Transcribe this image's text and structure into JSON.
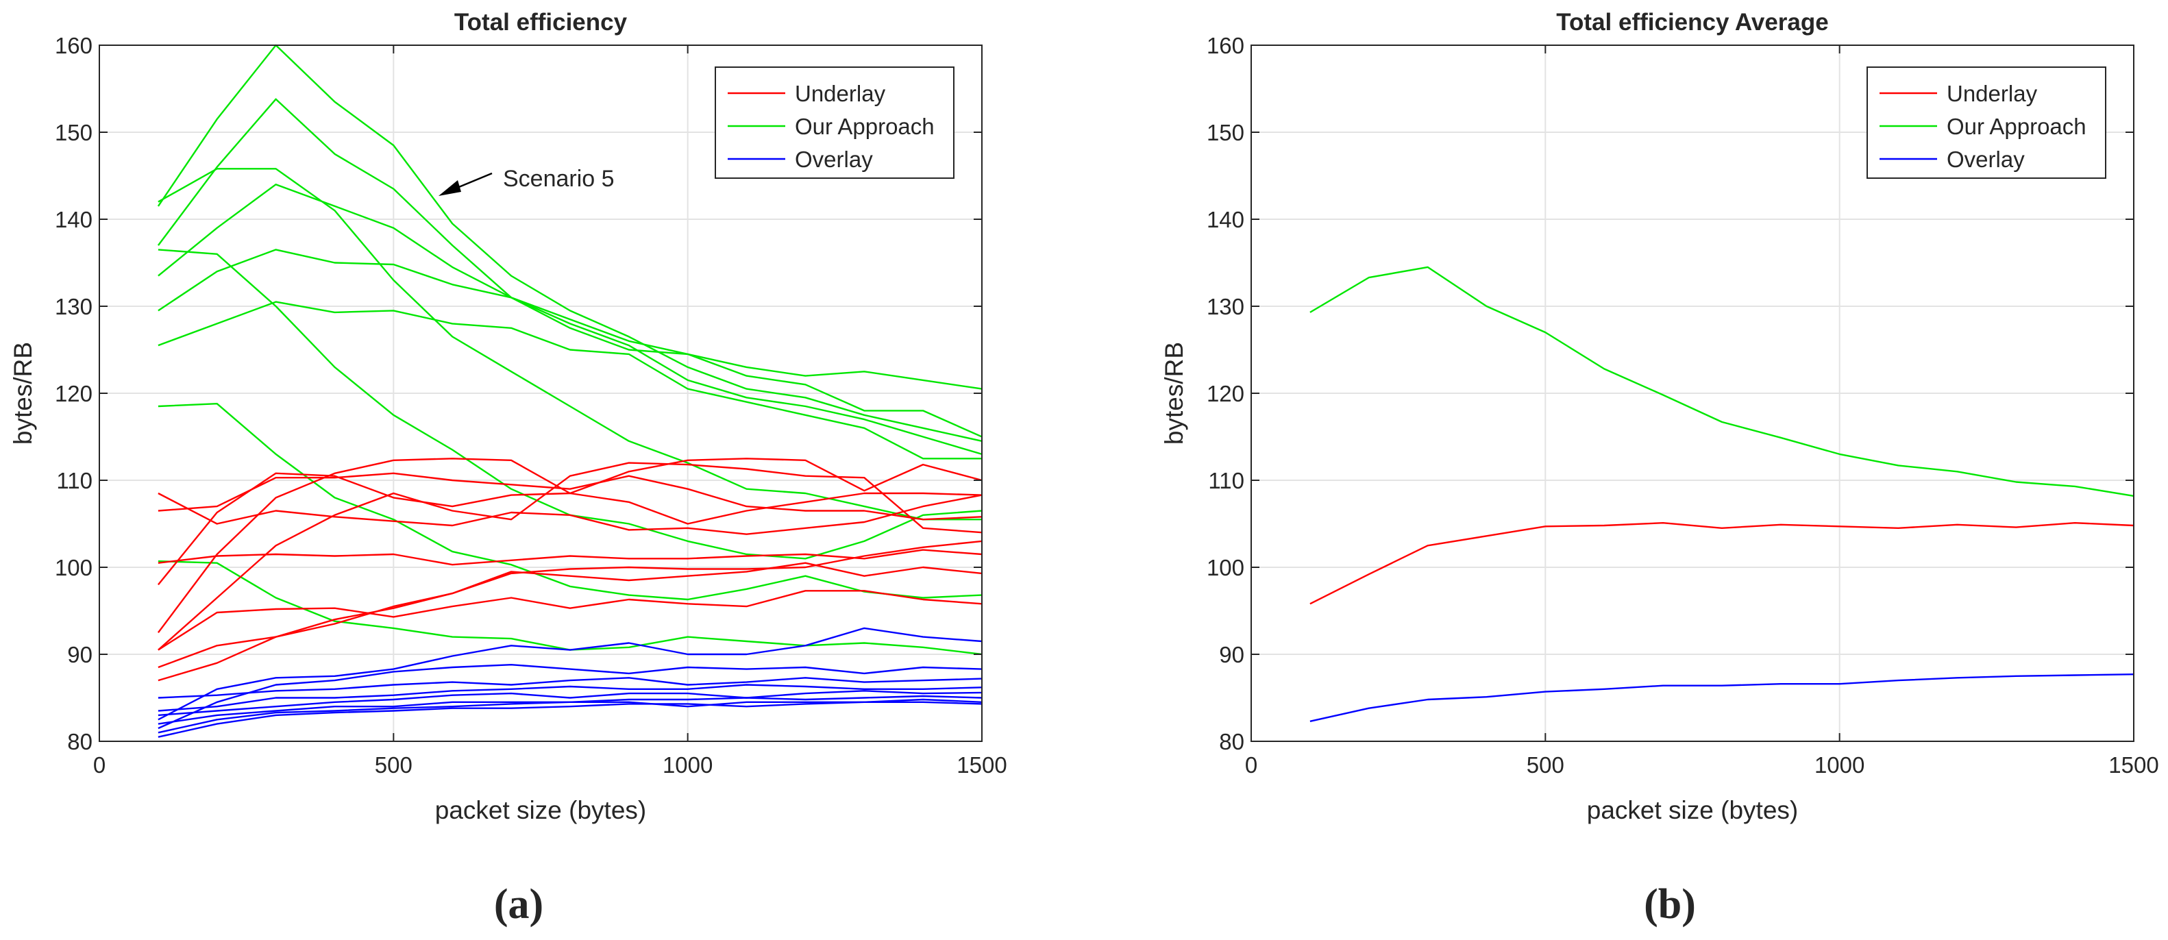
{
  "chart_data": [
    {
      "type": "line",
      "title": "Total efficiency",
      "xlabel": "packet size (bytes)",
      "ylabel": "bytes/RB",
      "xlim": [
        0,
        1500
      ],
      "ylim": [
        80,
        160
      ],
      "xticks": [
        0,
        500,
        1000,
        1500
      ],
      "yticks": [
        80,
        90,
        100,
        110,
        120,
        130,
        140,
        150,
        160
      ],
      "grid": true,
      "legend_position": "top-right",
      "panel_label": "(a)",
      "legend": [
        {
          "label": "Underlay",
          "color": "#ff0000"
        },
        {
          "label": "Our Approach",
          "color": "#00e600"
        },
        {
          "label": "Overlay",
          "color": "#0000ff"
        }
      ],
      "annotation": {
        "text": "Scenario 5",
        "points_to": [
          580,
          143
        ]
      },
      "x": [
        100,
        200,
        300,
        400,
        500,
        600,
        700,
        800,
        900,
        1000,
        1100,
        1200,
        1300,
        1400,
        1500
      ],
      "series": [
        {
          "name": "Our Approach",
          "color": "#00e600",
          "values": [
            141.5,
            151.5,
            160.0,
            153.5,
            148.5,
            139.5,
            133.5,
            129.5,
            126.5,
            123.0,
            120.5,
            119.5,
            117.5,
            116.0,
            114.5
          ]
        },
        {
          "name": "Our Approach",
          "color": "#00e600",
          "values": [
            137.0,
            146.0,
            153.8,
            147.5,
            143.5,
            137.0,
            131.0,
            127.5,
            125.0,
            124.5,
            122.0,
            121.0,
            118.0,
            118.0,
            115.0
          ]
        },
        {
          "name": "Our Approach",
          "color": "#00e600",
          "values": [
            133.5,
            139.0,
            144.0,
            141.5,
            139.0,
            134.5,
            131.0,
            128.0,
            125.5,
            121.5,
            119.5,
            118.5,
            117.0,
            115.0,
            113.0
          ]
        },
        {
          "name": "Our Approach",
          "color": "#00e600",
          "values": [
            129.5,
            134.0,
            136.5,
            135.0,
            134.8,
            132.5,
            131.0,
            128.5,
            126.0,
            124.5,
            123.0,
            122.0,
            122.5,
            121.5,
            120.5
          ]
        },
        {
          "name": "Our Approach",
          "color": "#00e600",
          "values": [
            125.5,
            128.0,
            130.5,
            129.3,
            129.5,
            128.0,
            127.5,
            125.0,
            124.5,
            120.5,
            119.0,
            117.5,
            116.0,
            112.5,
            112.5
          ]
        },
        {
          "name": "Our Approach",
          "color": "#00e600",
          "values": [
            142.0,
            145.8,
            145.8,
            141.0,
            133.0,
            126.5,
            122.5,
            118.5,
            114.5,
            112.0,
            109.0,
            108.5,
            107.0,
            105.5,
            105.5
          ]
        },
        {
          "name": "Our Approach",
          "color": "#00e600",
          "values": [
            136.5,
            136.0,
            130.0,
            123.0,
            117.5,
            113.5,
            109.0,
            106.0,
            105.0,
            103.0,
            101.5,
            101.0,
            103.0,
            106.0,
            106.5
          ]
        },
        {
          "name": "Our Approach",
          "color": "#00e600",
          "values": [
            118.5,
            118.8,
            113.0,
            108.0,
            105.5,
            101.8,
            100.3,
            97.8,
            96.8,
            96.3,
            97.5,
            99.0,
            97.2,
            96.5,
            96.8
          ]
        },
        {
          "name": "Our Approach",
          "color": "#00e600",
          "values": [
            100.7,
            100.5,
            96.5,
            93.8,
            93.0,
            92.0,
            91.8,
            90.5,
            90.8,
            92.0,
            91.5,
            91.0,
            91.3,
            90.8,
            90.0
          ]
        },
        {
          "name": "Underlay",
          "color": "#ff0000",
          "values": [
            108.5,
            105.0,
            106.5,
            105.8,
            105.3,
            104.8,
            106.3,
            106.0,
            104.3,
            104.5,
            103.8,
            104.5,
            105.2,
            107.0,
            108.3
          ]
        },
        {
          "name": "Underlay",
          "color": "#ff0000",
          "values": [
            106.5,
            107.0,
            110.3,
            110.3,
            110.8,
            110.0,
            109.5,
            109.0,
            110.5,
            109.0,
            107.0,
            106.5,
            106.5,
            105.5,
            105.8
          ]
        },
        {
          "name": "Underlay",
          "color": "#ff0000",
          "values": [
            98.0,
            106.3,
            110.8,
            110.5,
            108.0,
            107.0,
            108.3,
            108.5,
            107.5,
            105.0,
            106.5,
            107.5,
            108.5,
            108.5,
            108.3
          ]
        },
        {
          "name": "Underlay",
          "color": "#ff0000",
          "values": [
            92.5,
            101.5,
            108.0,
            110.8,
            112.3,
            112.5,
            112.3,
            108.5,
            111.0,
            112.3,
            112.5,
            112.3,
            108.8,
            111.8,
            110.0
          ]
        },
        {
          "name": "Underlay",
          "color": "#ff0000",
          "values": [
            100.5,
            101.3,
            101.5,
            101.3,
            101.5,
            100.3,
            100.8,
            101.3,
            101.0,
            101.0,
            101.3,
            101.5,
            101.0,
            102.0,
            101.5
          ]
        },
        {
          "name": "Underlay",
          "color": "#ff0000",
          "values": [
            90.5,
            96.5,
            102.5,
            106.0,
            108.5,
            106.5,
            105.5,
            110.5,
            112.0,
            111.8,
            111.3,
            110.5,
            110.3,
            104.5,
            104.0
          ]
        },
        {
          "name": "Underlay",
          "color": "#ff0000",
          "values": [
            90.5,
            94.8,
            95.2,
            95.3,
            94.3,
            95.5,
            96.5,
            95.3,
            96.3,
            95.8,
            95.5,
            97.3,
            97.3,
            96.3,
            95.8
          ]
        },
        {
          "name": "Underlay",
          "color": "#ff0000",
          "values": [
            88.5,
            91.0,
            92.0,
            94.0,
            95.3,
            97.0,
            99.5,
            99.0,
            98.5,
            99.0,
            99.5,
            100.5,
            99.0,
            100.0,
            99.3
          ]
        },
        {
          "name": "Underlay",
          "color": "#ff0000",
          "values": [
            87.0,
            89.0,
            92.0,
            93.5,
            95.5,
            97.0,
            99.3,
            99.8,
            100.0,
            99.8,
            99.8,
            100.0,
            101.3,
            102.3,
            103.0
          ]
        },
        {
          "name": "Overlay",
          "color": "#0000ff",
          "values": [
            82.5,
            86.0,
            87.3,
            87.5,
            88.3,
            89.8,
            91.0,
            90.5,
            91.3,
            90.0,
            90.0,
            91.0,
            93.0,
            92.0,
            91.5
          ]
        },
        {
          "name": "Overlay",
          "color": "#0000ff",
          "values": [
            81.5,
            84.5,
            86.5,
            87.0,
            88.0,
            88.5,
            88.8,
            88.3,
            87.8,
            88.5,
            88.3,
            88.5,
            87.8,
            88.5,
            88.3
          ]
        },
        {
          "name": "Overlay",
          "color": "#0000ff",
          "values": [
            85.0,
            85.3,
            85.8,
            86.0,
            86.5,
            86.8,
            86.5,
            87.0,
            87.3,
            86.5,
            86.8,
            87.3,
            86.8,
            87.0,
            87.2
          ]
        },
        {
          "name": "Overlay",
          "color": "#0000ff",
          "values": [
            83.5,
            84.0,
            85.0,
            85.0,
            85.3,
            85.8,
            86.0,
            86.3,
            86.0,
            86.0,
            86.5,
            86.3,
            86.0,
            86.0,
            86.2
          ]
        },
        {
          "name": "Overlay",
          "color": "#0000ff",
          "values": [
            83.0,
            83.5,
            84.0,
            84.5,
            84.8,
            85.3,
            85.5,
            85.0,
            85.5,
            85.5,
            85.0,
            85.5,
            85.8,
            85.5,
            85.6
          ]
        },
        {
          "name": "Overlay",
          "color": "#0000ff",
          "values": [
            82.0,
            83.0,
            83.5,
            84.0,
            84.0,
            84.5,
            84.5,
            84.5,
            84.8,
            84.8,
            85.0,
            84.8,
            85.0,
            85.2,
            85.0
          ]
        },
        {
          "name": "Overlay",
          "color": "#0000ff",
          "values": [
            81.0,
            82.5,
            83.3,
            83.5,
            83.8,
            84.0,
            84.3,
            84.5,
            84.5,
            84.0,
            84.5,
            84.5,
            84.5,
            84.8,
            84.5
          ]
        },
        {
          "name": "Overlay",
          "color": "#0000ff",
          "values": [
            80.5,
            82.0,
            83.0,
            83.3,
            83.5,
            83.8,
            83.8,
            84.0,
            84.3,
            84.3,
            84.0,
            84.3,
            84.5,
            84.5,
            84.3
          ]
        }
      ]
    },
    {
      "type": "line",
      "title": "Total efficiency Average",
      "xlabel": "packet size (bytes)",
      "ylabel": "bytes/RB",
      "xlim": [
        0,
        1500
      ],
      "ylim": [
        80,
        160
      ],
      "xticks": [
        0,
        500,
        1000,
        1500
      ],
      "yticks": [
        80,
        90,
        100,
        110,
        120,
        130,
        140,
        150,
        160
      ],
      "grid": true,
      "legend_position": "top-right",
      "panel_label": "(b)",
      "legend": [
        {
          "label": "Underlay",
          "color": "#ff0000"
        },
        {
          "label": "Our Approach",
          "color": "#00e600"
        },
        {
          "label": "Overlay",
          "color": "#0000ff"
        }
      ],
      "x": [
        100,
        200,
        300,
        400,
        500,
        600,
        700,
        800,
        900,
        1000,
        1100,
        1200,
        1300,
        1400,
        1500
      ],
      "series": [
        {
          "name": "Our Approach",
          "color": "#00e600",
          "values": [
            129.3,
            133.3,
            134.5,
            130.0,
            127.0,
            122.8,
            119.8,
            116.7,
            114.9,
            113.0,
            111.7,
            111.0,
            109.8,
            109.3,
            108.2
          ]
        },
        {
          "name": "Underlay",
          "color": "#ff0000",
          "values": [
            95.8,
            99.2,
            102.5,
            103.6,
            104.7,
            104.8,
            105.1,
            104.5,
            104.9,
            104.7,
            104.5,
            104.9,
            104.6,
            105.1,
            104.8
          ]
        },
        {
          "name": "Overlay",
          "color": "#0000ff",
          "values": [
            82.3,
            83.8,
            84.8,
            85.1,
            85.7,
            86.0,
            86.4,
            86.4,
            86.6,
            86.6,
            87.0,
            87.3,
            87.5,
            87.6,
            87.7
          ]
        }
      ]
    }
  ]
}
